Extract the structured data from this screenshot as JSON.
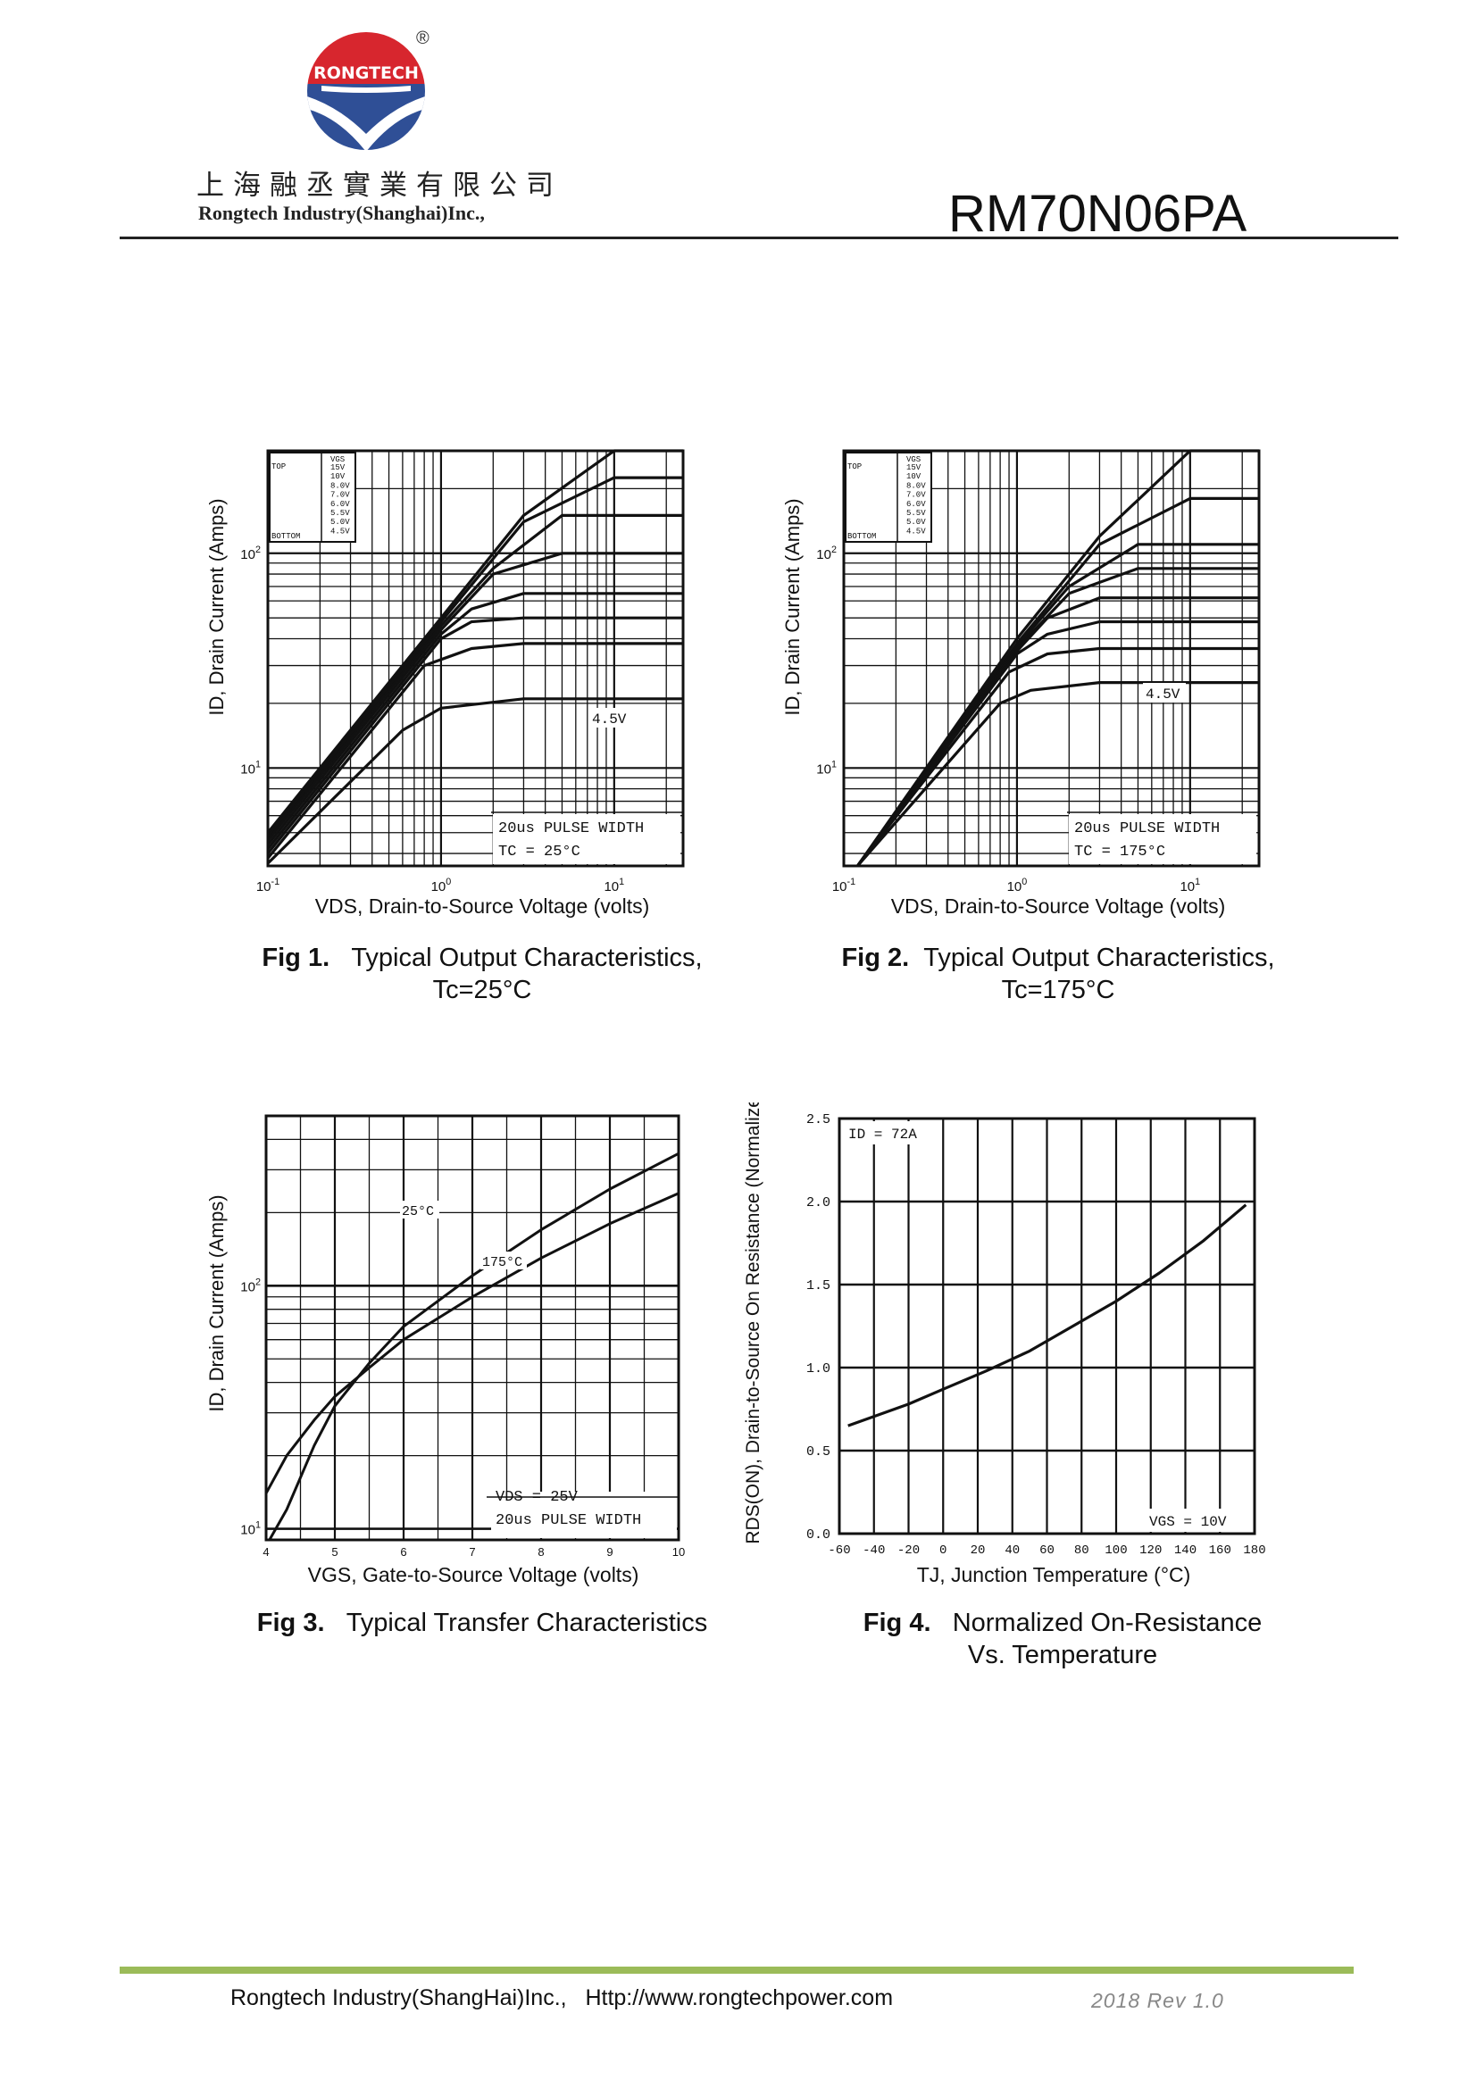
{
  "header": {
    "logo_text": "RONGTECH",
    "registered_mark": "®",
    "company_cn": "上海融丞實業有限公司",
    "company_en": "Rongtech Industry(Shanghai)Inc.,",
    "part_number": "RM70N06PA"
  },
  "footer": {
    "company": "Rongtech Industry(ShangHai)Inc.,",
    "url": "Http://www.rongtechpower.com",
    "version": "2018  Rev  1.0"
  },
  "colors": {
    "accent": "#9bbb59",
    "logo_red": "#d7262e",
    "logo_blue": "#2f4f96"
  },
  "figures": [
    {
      "num": "Fig 1.",
      "title": "Typical Output Characteristics,",
      "subtitle": "Tc=25°C"
    },
    {
      "num": "Fig 2.",
      "title": "Typical Output Characteristics,",
      "subtitle": "Tc=175°C"
    },
    {
      "num": "Fig 3.",
      "title": "Typical Transfer Characteristics",
      "subtitle": ""
    },
    {
      "num": "Fig 4.",
      "title": "Normalized On-Resistance",
      "subtitle": "Vs. Temperature"
    }
  ],
  "chart_data": [
    {
      "type": "line",
      "title": "Typical Output Characteristics, Tc=25°C",
      "xlabel": "VDS, Drain-to-Source Voltage (volts)",
      "ylabel": "ID, Drain Current (Amps)",
      "xscale": "log",
      "yscale": "log",
      "xlim": [
        0.1,
        25
      ],
      "ylim": [
        3.5,
        300
      ],
      "x_ticks": [
        "10-1",
        "100",
        "101"
      ],
      "y_ticks": [
        "101",
        "102"
      ],
      "legend_title": "VGS",
      "legend": [
        "TOP",
        "15V",
        "10V",
        "8.0V",
        "7.0V",
        "6.0V",
        "5.5V",
        "5.0V",
        "BOTTOM",
        "4.5V"
      ],
      "annotation": [
        "20us PULSE WIDTH",
        "TC = 25°C"
      ],
      "curve_label": "4.5V",
      "series": [
        {
          "name": "15V",
          "x": [
            0.1,
            1,
            3,
            10,
            25
          ],
          "y": [
            5.0,
            50,
            150,
            300,
            300
          ]
        },
        {
          "name": "10V",
          "x": [
            0.1,
            1,
            3,
            10,
            25
          ],
          "y": [
            4.8,
            48,
            140,
            225,
            225
          ]
        },
        {
          "name": "8.0V",
          "x": [
            0.1,
            1,
            2,
            5,
            25
          ],
          "y": [
            4.6,
            46,
            85,
            150,
            150
          ]
        },
        {
          "name": "7.0V",
          "x": [
            0.1,
            1,
            2,
            5,
            25
          ],
          "y": [
            4.4,
            44,
            80,
            100,
            100
          ]
        },
        {
          "name": "6.0V",
          "x": [
            0.1,
            1,
            1.5,
            3,
            25
          ],
          "y": [
            4.2,
            42,
            55,
            65,
            65
          ]
        },
        {
          "name": "5.5V",
          "x": [
            0.1,
            1,
            1.5,
            3,
            25
          ],
          "y": [
            4.0,
            40,
            48,
            50,
            50
          ]
        },
        {
          "name": "5.0V",
          "x": [
            0.1,
            0.8,
            1.5,
            3,
            25
          ],
          "y": [
            3.8,
            30,
            36,
            38,
            38
          ]
        },
        {
          "name": "4.5V",
          "x": [
            0.1,
            0.6,
            1,
            3,
            25
          ],
          "y": [
            3.6,
            15,
            19,
            21,
            21
          ]
        }
      ]
    },
    {
      "type": "line",
      "title": "Typical Output Characteristics, Tc=175°C",
      "xlabel": "VDS, Drain-to-Source Voltage (volts)",
      "ylabel": "ID, Drain Current (Amps)",
      "xscale": "log",
      "yscale": "log",
      "xlim": [
        0.1,
        25
      ],
      "ylim": [
        3.5,
        300
      ],
      "x_ticks": [
        "10-1",
        "100",
        "101"
      ],
      "y_ticks": [
        "101",
        "102"
      ],
      "legend_title": "VGS",
      "legend": [
        "TOP",
        "15V",
        "10V",
        "8.0V",
        "7.0V",
        "6.0V",
        "5.5V",
        "5.0V",
        "BOTTOM",
        "4.5V"
      ],
      "annotation": [
        "20us PULSE WIDTH",
        "TC = 175°C"
      ],
      "curve_label": "4.5V",
      "series": [
        {
          "name": "15V",
          "x": [
            0.12,
            1,
            3,
            10,
            25
          ],
          "y": [
            3.5,
            40,
            120,
            300,
            300
          ]
        },
        {
          "name": "10V",
          "x": [
            0.12,
            1,
            3,
            10,
            25
          ],
          "y": [
            3.5,
            38,
            110,
            180,
            180
          ]
        },
        {
          "name": "8.0V",
          "x": [
            0.12,
            1,
            2,
            5,
            25
          ],
          "y": [
            3.5,
            37,
            70,
            110,
            110
          ]
        },
        {
          "name": "7.0V",
          "x": [
            0.12,
            1,
            2,
            5,
            25
          ],
          "y": [
            3.5,
            36,
            65,
            85,
            85
          ]
        },
        {
          "name": "6.0V",
          "x": [
            0.12,
            1,
            1.5,
            3,
            25
          ],
          "y": [
            3.5,
            35,
            50,
            62,
            62
          ]
        },
        {
          "name": "5.5V",
          "x": [
            0.12,
            1,
            1.5,
            3,
            25
          ],
          "y": [
            3.5,
            34,
            42,
            48,
            48
          ]
        },
        {
          "name": "5.0V",
          "x": [
            0.12,
            0.9,
            1.5,
            3,
            25
          ],
          "y": [
            3.5,
            28,
            34,
            36,
            36
          ]
        },
        {
          "name": "4.5V",
          "x": [
            0.12,
            0.8,
            1.2,
            3,
            25
          ],
          "y": [
            3.5,
            20,
            23,
            25,
            25
          ]
        }
      ]
    },
    {
      "type": "line",
      "title": "Typical Transfer Characteristics",
      "xlabel": "VGS, Gate-to-Source Voltage (volts)",
      "ylabel": "ID, Drain Current (Amps)",
      "xscale": "linear",
      "yscale": "log",
      "xlim": [
        4,
        10
      ],
      "ylim": [
        9,
        500
      ],
      "x_ticks": [
        "4",
        "5",
        "6",
        "7",
        "8",
        "9",
        "10"
      ],
      "y_ticks": [
        "101",
        "102"
      ],
      "annotation": [
        "VDS = 25V",
        "20us PULSE WIDTH"
      ],
      "series": [
        {
          "name": "25°C",
          "x": [
            4.05,
            4.3,
            4.7,
            5.0,
            5.5,
            6.0,
            7.0,
            8.0,
            9.0,
            10.0
          ],
          "y": [
            9,
            12,
            22,
            32,
            48,
            68,
            110,
            170,
            250,
            350
          ]
        },
        {
          "name": "175°C",
          "x": [
            4.0,
            4.3,
            4.7,
            5.0,
            5.5,
            6.0,
            7.0,
            8.0,
            9.0,
            10.0
          ],
          "y": [
            14,
            20,
            28,
            35,
            46,
            60,
            90,
            130,
            180,
            240
          ]
        }
      ]
    },
    {
      "type": "line",
      "title": "Normalized On-Resistance Vs. Temperature",
      "xlabel": "TJ, Junction Temperature (°C)",
      "ylabel": "RDS(ON), Drain-to-Source On Resistance (Normalized)",
      "xscale": "linear",
      "yscale": "linear",
      "xlim": [
        -60,
        180
      ],
      "ylim": [
        0.0,
        2.5
      ],
      "x_ticks": [
        "-60",
        "-40",
        "-20",
        "0",
        "20",
        "40",
        "60",
        "80",
        "100",
        "120",
        "140",
        "160",
        "180"
      ],
      "y_ticks": [
        "0.0",
        "0.5",
        "1.0",
        "1.5",
        "2.0",
        "2.5"
      ],
      "annotation": [
        "ID = 72A",
        "VGS = 10V"
      ],
      "series": [
        {
          "name": "RDS(on)",
          "x": [
            -55,
            -20,
            0,
            25,
            50,
            75,
            100,
            125,
            150,
            175
          ],
          "y": [
            0.65,
            0.78,
            0.87,
            0.98,
            1.1,
            1.25,
            1.4,
            1.57,
            1.76,
            1.98
          ]
        }
      ]
    }
  ]
}
